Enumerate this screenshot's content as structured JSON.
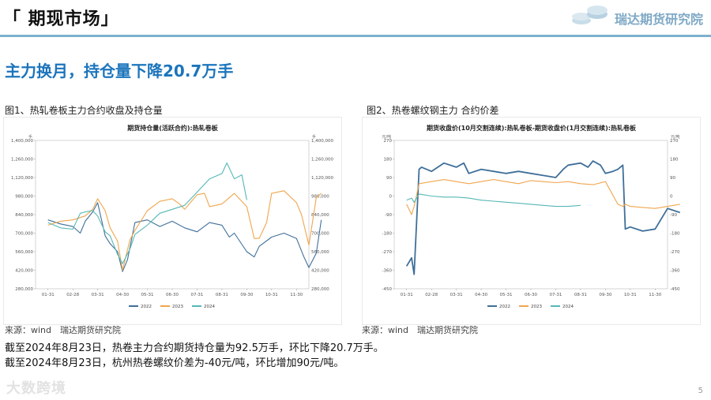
{
  "slide": {
    "title": "「 期现市场」",
    "logo_text": "瑞达期货研究院",
    "headline": "主力换月，持仓量下降20.7万手",
    "page_number": "5",
    "watermark": "大数跨境"
  },
  "figure1": {
    "caption": "图1、热轧卷板主力合约收盘及持仓量",
    "source": "来源：wind　瑞达期货研究院"
  },
  "figure2": {
    "caption": "图2、热卷螺纹钢主力 合约价差",
    "source": "来源：wind　瑞达期货研究院"
  },
  "body_text": [
    "截至2024年8月23日，热卷主力合约期货持仓量为92.5万手，环比下降20.7万手。",
    "截至2024年8月23日，杭州热卷螺纹价差为-40元/吨，环比增加90元/吨。"
  ],
  "colors": {
    "accent": "#1c75bc",
    "series_2022": "#3f6f99",
    "series_2023": "#f0a64e",
    "series_2024": "#56b7b5"
  },
  "chart_data": [
    {
      "type": "line",
      "title": "期货持仓量(活跃合约):热轧卷板",
      "xlabel": "",
      "ylabel": "手",
      "ylabel_right": "手",
      "yticks": [
        "1,400,000",
        "1,260,000",
        "1,120,000",
        "980,000",
        "840,000",
        "700,000",
        "560,000",
        "420,000",
        "280,000"
      ],
      "ylim": [
        280000,
        1400000
      ],
      "categories": [
        "01-31",
        "02-28",
        "03-31",
        "04-30",
        "05-31",
        "06-30",
        "07-31",
        "08-31",
        "09-30",
        "10-31",
        "11-30"
      ],
      "series": [
        {
          "name": "2022",
          "x": [
            0,
            0.5,
            1,
            1.3,
            1.5,
            1.8,
            2,
            2.3,
            2.5,
            2.8,
            3,
            3.2,
            3.5,
            4,
            4.5,
            5,
            5.5,
            6,
            6.5,
            7,
            7.3,
            7.5,
            8,
            8.3,
            8.5,
            9,
            9.5,
            10,
            10.3,
            10.5,
            10.8,
            11
          ],
          "values": [
            800000,
            770000,
            750000,
            700000,
            790000,
            860000,
            930000,
            680000,
            620000,
            560000,
            410000,
            500000,
            780000,
            800000,
            750000,
            790000,
            740000,
            710000,
            780000,
            760000,
            670000,
            700000,
            560000,
            520000,
            600000,
            670000,
            700000,
            660000,
            520000,
            440000,
            550000,
            800000
          ]
        },
        {
          "name": "2023",
          "x": [
            0,
            0.5,
            1,
            1.5,
            1.8,
            2,
            2.3,
            2.5,
            2.8,
            3,
            3.3,
            3.5,
            3.8,
            4,
            4.5,
            5,
            5.3,
            5.5,
            6,
            6.3,
            6.5,
            7,
            7.5,
            8,
            8.3,
            8.5,
            8.8,
            9,
            9.5,
            10,
            10.2,
            10.5,
            10.8,
            11
          ],
          "values": [
            760000,
            790000,
            800000,
            830000,
            880000,
            960000,
            870000,
            740000,
            640000,
            420000,
            650000,
            720000,
            810000,
            870000,
            940000,
            960000,
            920000,
            880000,
            990000,
            1000000,
            900000,
            920000,
            1000000,
            900000,
            660000,
            660000,
            780000,
            1000000,
            1020000,
            930000,
            840000,
            610000,
            970000,
            1000000
          ]
        },
        {
          "name": "2024",
          "x": [
            0,
            0.5,
            1,
            1.3,
            1.5,
            1.8,
            2,
            2.3,
            2.5,
            2.8,
            3,
            3.3,
            3.5,
            4,
            4.5,
            5,
            5.5,
            6,
            6.5,
            7,
            7.2,
            7.5,
            7.8,
            8
          ],
          "values": [
            780000,
            740000,
            730000,
            850000,
            860000,
            870000,
            830000,
            710000,
            680000,
            540000,
            470000,
            580000,
            690000,
            760000,
            850000,
            880000,
            910000,
            1010000,
            1110000,
            1150000,
            1230000,
            1110000,
            1140000,
            950000
          ]
        }
      ]
    },
    {
      "type": "line",
      "title": "期货收盘价(10月交割连续):热轧卷板-期货收盘价(1月交割连续):热轧卷板",
      "xlabel": "",
      "ylabel": "元/吨",
      "ylabel_right": "元/吨",
      "yticks": [
        "270",
        "180",
        "90",
        "0",
        "-90",
        "-180",
        "-270",
        "-360",
        "-450"
      ],
      "ylim": [
        -450,
        270
      ],
      "categories": [
        "01-31",
        "02-28",
        "03-31",
        "04-30",
        "05-31",
        "06-30",
        "07-31",
        "08-31",
        "09-30",
        "10-31",
        "11-30"
      ],
      "series": [
        {
          "name": "2022",
          "x": [
            0,
            0.2,
            0.3,
            0.5,
            0.6,
            1,
            1.5,
            2,
            2.3,
            2.5,
            3,
            3.5,
            4,
            4.5,
            5,
            5.5,
            6,
            6.3,
            6.5,
            7,
            7.3,
            7.5,
            7.8,
            8,
            8.3,
            8.5,
            8.7,
            8.8,
            9,
            9.5,
            10,
            10.5,
            11
          ],
          "values": [
            -340,
            -300,
            -380,
            130,
            140,
            120,
            160,
            140,
            160,
            110,
            130,
            120,
            110,
            120,
            110,
            100,
            90,
            130,
            150,
            160,
            140,
            170,
            150,
            110,
            120,
            130,
            150,
            -160,
            -150,
            -170,
            -160,
            -60,
            -80
          ]
        },
        {
          "name": "2023",
          "x": [
            0,
            0.2,
            0.3,
            0.5,
            1,
            1.5,
            2,
            2.5,
            3,
            3.5,
            4,
            4.5,
            5,
            5.5,
            6,
            6.5,
            7,
            7.5,
            8,
            8.5,
            8.7,
            8.8,
            9,
            9.5,
            10,
            10.5,
            11
          ],
          "values": [
            -40,
            -90,
            -50,
            60,
            70,
            80,
            70,
            60,
            70,
            80,
            70,
            60,
            75,
            70,
            65,
            70,
            60,
            55,
            70,
            -40,
            -50,
            -40,
            -50,
            -55,
            -60,
            -50,
            -40
          ]
        },
        {
          "name": "2024",
          "x": [
            0,
            0.2,
            0.3,
            0.5,
            1,
            1.5,
            2,
            2.5,
            3,
            3.5,
            4,
            4.5,
            5,
            5.5,
            6,
            6.5,
            7
          ],
          "values": [
            -20,
            -10,
            -30,
            10,
            0,
            -5,
            -5,
            -10,
            -20,
            -25,
            -30,
            -35,
            -40,
            -45,
            -50,
            -50,
            -45
          ]
        }
      ]
    }
  ]
}
